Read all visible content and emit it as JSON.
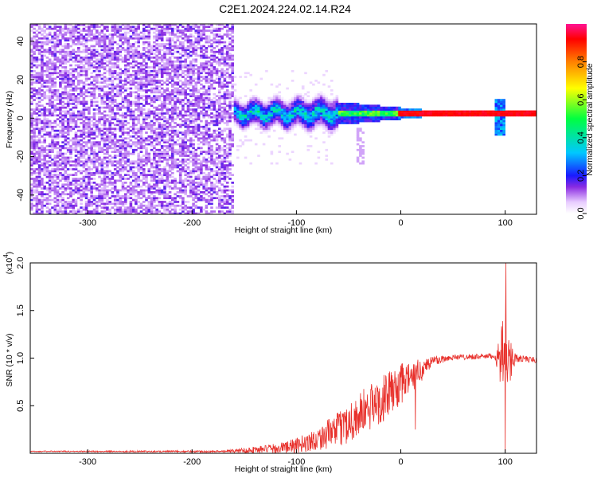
{
  "title": "C2E1.2024.224.02.14.R24",
  "chart_data": [
    {
      "type": "heatmap",
      "title": "C2E1.2024.224.02.14.R24",
      "xlabel": "Height of straight line (km)",
      "ylabel": "Frequency (Hz)",
      "xlim": [
        -355,
        130
      ],
      "ylim": [
        -50,
        49
      ],
      "xticks": [
        -300,
        -200,
        -100,
        0,
        100
      ],
      "xtick_labels": [
        "-300",
        "-200",
        "-100",
        "0",
        "100"
      ],
      "yticks": [
        -40,
        -20,
        0,
        20,
        40
      ],
      "ytick_labels": [
        "-40",
        "-20",
        "0",
        "20",
        "40"
      ],
      "colorbar": {
        "label": "Normalized spectral amplitude",
        "range": [
          0,
          1
        ],
        "ticks": [
          0.0,
          0.2,
          0.4,
          0.6,
          0.8
        ],
        "tick_labels": [
          "0.0",
          "0.2",
          "0.4",
          "0.6",
          "0.8"
        ],
        "colormap": "rainbow"
      },
      "regions": [
        {
          "x_range": [
            -355,
            -162
          ],
          "y_range": [
            -50,
            49
          ],
          "pattern": "broadband noise",
          "amplitude": 0.12
        },
        {
          "x_range": [
            -175,
            -60
          ],
          "y_range": [
            -10,
            10
          ],
          "pattern": "scattered signal band",
          "amplitude": 0.35
        },
        {
          "x_range": [
            -60,
            130
          ],
          "y_center": 2,
          "pattern": "narrow carrier line",
          "amplitude": 0.95
        }
      ]
    },
    {
      "type": "line",
      "xlabel": "Height of straight line (km)",
      "ylabel": "SNR (10 * v/v)",
      "y_multiplier": "(x10",
      "y_multiplier_exp": "4",
      "xlim": [
        -355,
        130
      ],
      "ylim": [
        0,
        2.0
      ],
      "xticks": [
        -300,
        -200,
        -100,
        0,
        100
      ],
      "xtick_labels": [
        "-300",
        "-200",
        "-100",
        "0",
        "100"
      ],
      "yticks": [
        0.5,
        1.0,
        1.5,
        2.0
      ],
      "ytick_labels": [
        "0.5",
        "1.0",
        "1.5",
        "2.0"
      ],
      "series": [
        {
          "color": "#e8312c",
          "envelope": [
            {
              "x": -355,
              "mean": 0.02,
              "spread": 0.005
            },
            {
              "x": -170,
              "mean": 0.02,
              "spread": 0.01
            },
            {
              "x": -150,
              "mean": 0.03,
              "spread": 0.03
            },
            {
              "x": -120,
              "mean": 0.05,
              "spread": 0.05
            },
            {
              "x": -100,
              "mean": 0.08,
              "spread": 0.08
            },
            {
              "x": -80,
              "mean": 0.15,
              "spread": 0.12
            },
            {
              "x": -60,
              "mean": 0.25,
              "spread": 0.18
            },
            {
              "x": -40,
              "mean": 0.4,
              "spread": 0.25
            },
            {
              "x": -20,
              "mean": 0.55,
              "spread": 0.25
            },
            {
              "x": 0,
              "mean": 0.72,
              "spread": 0.22
            },
            {
              "x": 10,
              "mean": 0.8,
              "spread": 0.18
            },
            {
              "x": 20,
              "mean": 0.88,
              "spread": 0.12
            },
            {
              "x": 30,
              "mean": 0.97,
              "spread": 0.06
            },
            {
              "x": 50,
              "mean": 1.01,
              "spread": 0.03
            },
            {
              "x": 90,
              "mean": 1.02,
              "spread": 0.03
            },
            {
              "x": 100,
              "mean": 1.0,
              "spread": 0.5
            },
            {
              "x": 110,
              "mean": 1.0,
              "spread": 0.04
            },
            {
              "x": 130,
              "mean": 0.98,
              "spread": 0.03
            }
          ]
        }
      ]
    }
  ]
}
